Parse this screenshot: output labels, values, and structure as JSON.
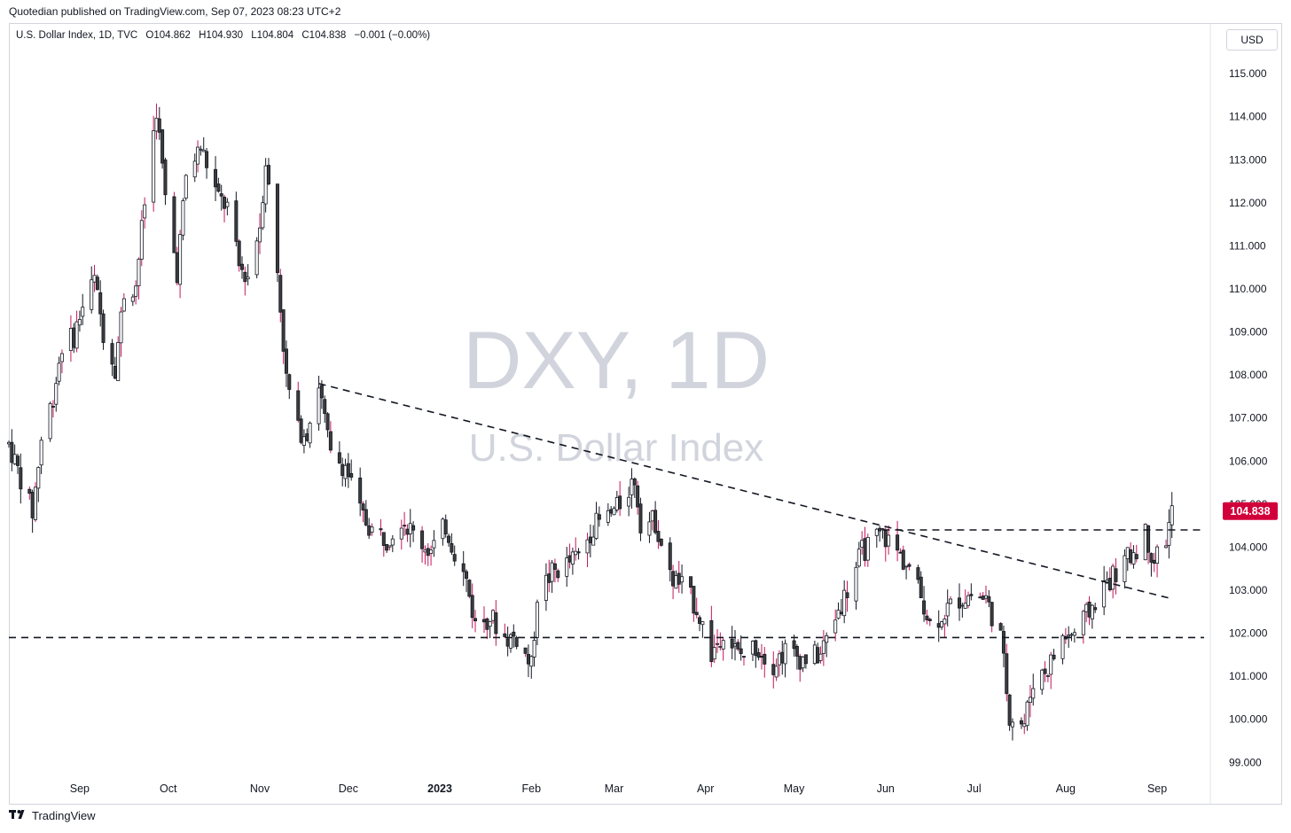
{
  "header": {
    "published": "Quotedian published on TradingView.com, Sep 07, 2023 08:23 UTC+2"
  },
  "legend": {
    "symbol": "U.S. Dollar Index, 1D, TVC",
    "open": "O104.862",
    "high": "H104.930",
    "low": "L104.804",
    "close": "C104.838",
    "change": "−0.001 (−0.00%)"
  },
  "currency_button": "USD",
  "watermark": {
    "title": "DXY, 1D",
    "subtitle": "U.S. Dollar Index"
  },
  "footer": {
    "brand": "TradingView",
    "logo_icon": "tradingview-logo-icon"
  },
  "colors": {
    "up_candle": "#ffffff",
    "down_candle": "#3c3c3c",
    "wick": "#131722",
    "wick_red": "#c2185b",
    "price_label_bg": "#d1003a",
    "watermark": "#d1d4dc"
  },
  "chart_data": {
    "type": "candlestick",
    "symbol": "DXY",
    "interval": "1D",
    "ylim": [
      98.8,
      115.6
    ],
    "y_ticks": [
      "99.000",
      "100.000",
      "101.000",
      "102.000",
      "103.000",
      "104.000",
      "105.000",
      "106.000",
      "107.000",
      "108.000",
      "109.000",
      "110.000",
      "111.000",
      "112.000",
      "113.000",
      "114.000",
      "115.000"
    ],
    "x_ticks": [
      {
        "date": "2022-09-01",
        "label": "Sep"
      },
      {
        "date": "2022-10-01",
        "label": "Oct"
      },
      {
        "date": "2022-11-01",
        "label": "Nov"
      },
      {
        "date": "2022-12-01",
        "label": "Dec"
      },
      {
        "date": "2023-01-01",
        "label": "2023"
      },
      {
        "date": "2023-02-01",
        "label": "Feb"
      },
      {
        "date": "2023-03-01",
        "label": "Mar"
      },
      {
        "date": "2023-04-01",
        "label": "Apr"
      },
      {
        "date": "2023-05-01",
        "label": "May"
      },
      {
        "date": "2023-06-01",
        "label": "Jun"
      },
      {
        "date": "2023-07-01",
        "label": "Jul"
      },
      {
        "date": "2023-08-01",
        "label": "Aug"
      },
      {
        "date": "2023-09-01",
        "label": "Sep"
      }
    ],
    "last_price": "104.838",
    "path": [
      [
        "2022-08-08",
        106.4
      ],
      [
        "2022-08-12",
        105.6
      ],
      [
        "2022-08-16",
        104.8
      ],
      [
        "2022-08-19",
        106.5
      ],
      [
        "2022-08-23",
        107.5
      ],
      [
        "2022-08-26",
        108.7
      ],
      [
        "2022-08-30",
        108.9
      ],
      [
        "2022-09-02",
        109.6
      ],
      [
        "2022-09-06",
        110.2
      ],
      [
        "2022-09-09",
        109.0
      ],
      [
        "2022-09-13",
        108.2
      ],
      [
        "2022-09-16",
        109.9
      ],
      [
        "2022-09-20",
        110.1
      ],
      [
        "2022-09-23",
        112.0
      ],
      [
        "2022-09-27",
        114.2
      ],
      [
        "2022-09-30",
        112.1
      ],
      [
        "2022-10-04",
        110.4
      ],
      [
        "2022-10-07",
        112.6
      ],
      [
        "2022-10-12",
        113.3
      ],
      [
        "2022-10-14",
        112.9
      ],
      [
        "2022-10-18",
        112.1
      ],
      [
        "2022-10-21",
        111.9
      ],
      [
        "2022-10-25",
        110.5
      ],
      [
        "2022-10-28",
        110.3
      ],
      [
        "2022-11-01",
        111.5
      ],
      [
        "2022-11-03",
        113.0
      ],
      [
        "2022-11-07",
        110.4
      ],
      [
        "2022-11-10",
        107.9
      ],
      [
        "2022-11-14",
        106.7
      ],
      [
        "2022-11-17",
        106.7
      ],
      [
        "2022-11-21",
        107.8
      ],
      [
        "2022-11-25",
        106.1
      ],
      [
        "2022-11-30",
        105.9
      ],
      [
        "2022-12-05",
        104.8
      ],
      [
        "2022-12-09",
        104.4
      ],
      [
        "2022-12-14",
        104.2
      ],
      [
        "2022-12-19",
        104.7
      ],
      [
        "2022-12-23",
        104.3
      ],
      [
        "2022-12-29",
        103.9
      ],
      [
        "2023-01-03",
        104.5
      ],
      [
        "2023-01-06",
        103.9
      ],
      [
        "2023-01-10",
        103.2
      ],
      [
        "2023-01-13",
        102.2
      ],
      [
        "2023-01-18",
        102.4
      ],
      [
        "2023-01-23",
        101.9
      ],
      [
        "2023-01-27",
        101.9
      ],
      [
        "2023-02-01",
        101.2
      ],
      [
        "2023-02-03",
        102.9
      ],
      [
        "2023-02-08",
        103.4
      ],
      [
        "2023-02-13",
        103.6
      ],
      [
        "2023-02-17",
        103.8
      ],
      [
        "2023-02-22",
        104.5
      ],
      [
        "2023-02-27",
        104.7
      ],
      [
        "2023-03-02",
        104.9
      ],
      [
        "2023-03-08",
        105.6
      ],
      [
        "2023-03-10",
        104.6
      ],
      [
        "2023-03-15",
        104.6
      ],
      [
        "2023-03-20",
        103.3
      ],
      [
        "2023-03-24",
        103.1
      ],
      [
        "2023-03-29",
        102.6
      ],
      [
        "2023-04-03",
        101.5
      ],
      [
        "2023-04-07",
        102.1
      ],
      [
        "2023-04-12",
        101.5
      ],
      [
        "2023-04-14",
        101.5
      ],
      [
        "2023-04-18",
        101.7
      ],
      [
        "2023-04-24",
        101.3
      ],
      [
        "2023-04-28",
        101.6
      ],
      [
        "2023-05-04",
        101.4
      ],
      [
        "2023-05-10",
        101.5
      ],
      [
        "2023-05-15",
        102.4
      ],
      [
        "2023-05-19",
        103.0
      ],
      [
        "2023-05-24",
        103.9
      ],
      [
        "2023-05-31",
        104.3
      ],
      [
        "2023-06-05",
        103.9
      ],
      [
        "2023-06-09",
        103.5
      ],
      [
        "2023-06-14",
        102.7
      ],
      [
        "2023-06-16",
        102.2
      ],
      [
        "2023-06-21",
        102.5
      ],
      [
        "2023-06-26",
        102.8
      ],
      [
        "2023-06-30",
        102.9
      ],
      [
        "2023-07-05",
        102.8
      ],
      [
        "2023-07-10",
        101.9
      ],
      [
        "2023-07-13",
        100.1
      ],
      [
        "2023-07-18",
        99.9
      ],
      [
        "2023-07-21",
        100.9
      ],
      [
        "2023-07-26",
        101.2
      ],
      [
        "2023-07-31",
        101.9
      ],
      [
        "2023-08-04",
        102.0
      ],
      [
        "2023-08-09",
        102.5
      ],
      [
        "2023-08-14",
        103.1
      ],
      [
        "2023-08-18",
        103.4
      ],
      [
        "2023-08-23",
        103.8
      ],
      [
        "2023-08-28",
        104.3
      ],
      [
        "2023-08-31",
        103.7
      ],
      [
        "2023-09-04",
        104.2
      ],
      [
        "2023-09-06",
        104.838
      ]
    ],
    "annotations": [
      {
        "type": "trendline",
        "style": "dashed",
        "from": [
          "2022-11-21",
          107.8
        ],
        "to": [
          "2023-09-06",
          102.8
        ]
      },
      {
        "type": "horizontal_line",
        "style": "dashed",
        "y": 101.9
      },
      {
        "type": "horizontal_line",
        "style": "dashed",
        "y": 104.4,
        "from_date": "2023-05-31"
      }
    ]
  }
}
